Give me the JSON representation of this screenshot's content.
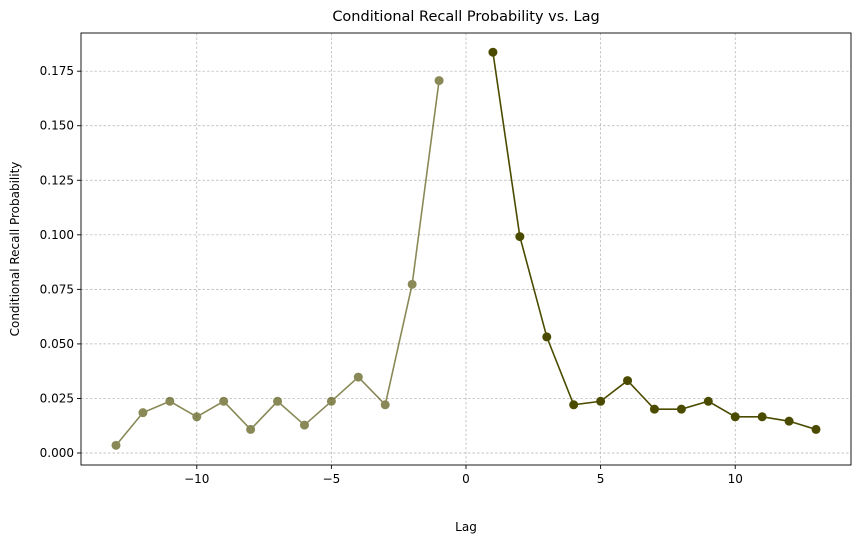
{
  "chart_data": {
    "type": "line",
    "title": "Conditional Recall Probability vs. Lag",
    "xlabel": "Lag",
    "ylabel": "Conditional Recall Probability",
    "xlim": [
      -14.3,
      14.3
    ],
    "ylim": [
      -0.0055,
      0.1925
    ],
    "xticks": [
      -10,
      -5,
      0,
      5,
      10
    ],
    "xtick_labels": [
      "−10",
      "−5",
      "0",
      "5",
      "10"
    ],
    "yticks": [
      0.0,
      0.025,
      0.05,
      0.075,
      0.1,
      0.125,
      0.15,
      0.175
    ],
    "ytick_labels": [
      "0.000",
      "0.025",
      "0.050",
      "0.075",
      "0.100",
      "0.125",
      "0.150",
      "0.175"
    ],
    "grid": true,
    "series": [
      {
        "color": "#4b4b00",
        "opacity": 0.65,
        "x": [
          -13,
          -12,
          -11,
          -10,
          -9,
          -8,
          -7,
          -6,
          -5,
          -4,
          -3,
          -2,
          -1
        ],
        "y": [
          0.0035,
          0.0185,
          0.0237,
          0.0166,
          0.0237,
          0.0108,
          0.0237,
          0.0128,
          0.0237,
          0.0348,
          0.0221,
          0.0773,
          0.1707
        ]
      },
      {
        "color": "#4b4b00",
        "opacity": 1.0,
        "x": [
          1,
          2,
          3,
          4,
          5,
          6,
          7,
          8,
          9,
          10,
          11,
          12,
          13
        ],
        "y": [
          0.1837,
          0.0992,
          0.0532,
          0.0221,
          0.0237,
          0.0332,
          0.0201,
          0.0201,
          0.0237,
          0.0166,
          0.0166,
          0.0146,
          0.0108
        ]
      }
    ]
  }
}
